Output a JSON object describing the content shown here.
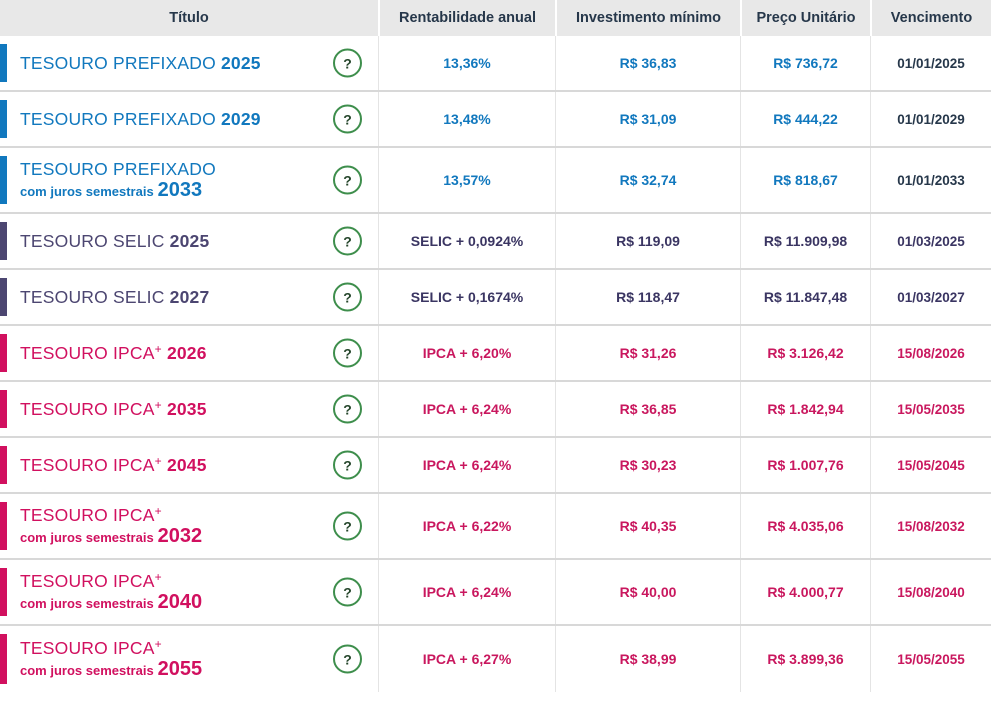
{
  "help_icon_glyph": "?",
  "colors": {
    "prefixado_accent": "#1178be",
    "selic_accent": "#4c4671",
    "ipca_accent": "#d1105f",
    "header_bg": "#e8e8e8",
    "header_text": "#26374a",
    "prefixado_maturity_text": "#26374a",
    "help_icon_border_green": "#3e8e4c",
    "row_separator": "#d8d8d8"
  },
  "table": {
    "columns": [
      "Título",
      "Rentabilidade anual",
      "Investimento mínimo",
      "Preço Unitário",
      "Vencimento"
    ],
    "rows": [
      {
        "family": "prefixado",
        "title": "TESOURO PREFIXADO",
        "sup": "",
        "year_inline": "2025",
        "subtitle": "",
        "year_sub": "",
        "rate": "13,36%",
        "min_investment": "R$ 36,83",
        "unit_price": "R$ 736,72",
        "maturity": "01/01/2025"
      },
      {
        "family": "prefixado",
        "title": "TESOURO PREFIXADO",
        "sup": "",
        "year_inline": "2029",
        "subtitle": "",
        "year_sub": "",
        "rate": "13,48%",
        "min_investment": "R$ 31,09",
        "unit_price": "R$ 444,22",
        "maturity": "01/01/2029"
      },
      {
        "family": "prefixado",
        "title": "TESOURO PREFIXADO",
        "sup": "",
        "year_inline": "",
        "subtitle": "com juros semestrais",
        "year_sub": "2033",
        "rate": "13,57%",
        "min_investment": "R$ 32,74",
        "unit_price": "R$ 818,67",
        "maturity": "01/01/2033"
      },
      {
        "family": "selic",
        "title": "TESOURO SELIC",
        "sup": "",
        "year_inline": "2025",
        "subtitle": "",
        "year_sub": "",
        "rate": "SELIC + 0,0924%",
        "min_investment": "R$ 119,09",
        "unit_price": "R$ 11.909,98",
        "maturity": "01/03/2025"
      },
      {
        "family": "selic",
        "title": "TESOURO SELIC",
        "sup": "",
        "year_inline": "2027",
        "subtitle": "",
        "year_sub": "",
        "rate": "SELIC + 0,1674%",
        "min_investment": "R$ 118,47",
        "unit_price": "R$ 11.847,48",
        "maturity": "01/03/2027"
      },
      {
        "family": "ipca",
        "title": "TESOURO IPCA",
        "sup": "+",
        "year_inline": "2026",
        "subtitle": "",
        "year_sub": "",
        "rate": "IPCA + 6,20%",
        "min_investment": "R$ 31,26",
        "unit_price": "R$ 3.126,42",
        "maturity": "15/08/2026"
      },
      {
        "family": "ipca",
        "title": "TESOURO IPCA",
        "sup": "+",
        "year_inline": "2035",
        "subtitle": "",
        "year_sub": "",
        "rate": "IPCA + 6,24%",
        "min_investment": "R$ 36,85",
        "unit_price": "R$ 1.842,94",
        "maturity": "15/05/2035"
      },
      {
        "family": "ipca",
        "title": "TESOURO IPCA",
        "sup": "+",
        "year_inline": "2045",
        "subtitle": "",
        "year_sub": "",
        "rate": "IPCA + 6,24%",
        "min_investment": "R$ 30,23",
        "unit_price": "R$ 1.007,76",
        "maturity": "15/05/2045"
      },
      {
        "family": "ipca",
        "title": "TESOURO IPCA",
        "sup": "+",
        "year_inline": "",
        "subtitle": "com juros semestrais",
        "year_sub": "2032",
        "rate": "IPCA + 6,22%",
        "min_investment": "R$ 40,35",
        "unit_price": "R$ 4.035,06",
        "maturity": "15/08/2032"
      },
      {
        "family": "ipca",
        "title": "TESOURO IPCA",
        "sup": "+",
        "year_inline": "",
        "subtitle": "com juros semestrais",
        "year_sub": "2040",
        "rate": "IPCA + 6,24%",
        "min_investment": "R$ 40,00",
        "unit_price": "R$ 4.000,77",
        "maturity": "15/08/2040"
      },
      {
        "family": "ipca",
        "title": "TESOURO IPCA",
        "sup": "+",
        "year_inline": "",
        "subtitle": "com juros semestrais",
        "year_sub": "2055",
        "rate": "IPCA + 6,27%",
        "min_investment": "R$ 38,99",
        "unit_price": "R$ 3.899,36",
        "maturity": "15/05/2055"
      }
    ]
  }
}
